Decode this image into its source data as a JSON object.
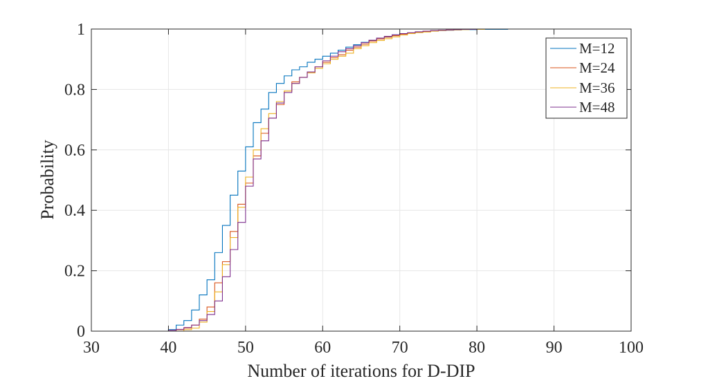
{
  "chart_data": {
    "type": "line",
    "title": "",
    "xlabel": "Number of iterations for D-DIP",
    "ylabel": "Probability",
    "xlim": [
      30,
      100
    ],
    "ylim": [
      0,
      1
    ],
    "xticks": [
      30,
      40,
      50,
      60,
      70,
      80,
      90,
      100
    ],
    "yticks": [
      0,
      0.2,
      0.4,
      0.6,
      0.8,
      1
    ],
    "xtick_labels": [
      "30",
      "40",
      "50",
      "60",
      "70",
      "80",
      "90",
      "100"
    ],
    "ytick_labels": [
      "0",
      "0.2",
      "0.4",
      "0.6",
      "0.8",
      "1"
    ],
    "grid": true,
    "legend_position": "top-right",
    "step": true,
    "x": [
      39,
      40,
      41,
      42,
      43,
      44,
      45,
      46,
      47,
      48,
      49,
      50,
      51,
      52,
      53,
      54,
      55,
      56,
      57,
      58,
      59,
      60,
      61,
      62,
      63,
      64,
      65,
      66,
      67,
      68,
      69,
      70,
      71,
      72,
      73,
      74,
      75,
      76,
      77,
      78,
      79,
      80,
      81,
      82,
      83,
      84,
      85,
      86,
      87,
      88,
      89,
      90,
      91,
      92,
      93
    ],
    "series": [
      {
        "name": "M=12",
        "color": "#0072BD",
        "values": [
          0,
          0.005,
          0.02,
          0.035,
          0.07,
          0.12,
          0.17,
          0.26,
          0.35,
          0.45,
          0.53,
          0.61,
          0.69,
          0.735,
          0.79,
          0.82,
          0.845,
          0.865,
          0.875,
          0.89,
          0.9,
          0.91,
          0.92,
          0.93,
          0.94,
          0.948,
          0.956,
          0.962,
          0.97,
          0.975,
          0.98,
          0.984,
          0.987,
          0.99,
          0.992,
          0.994,
          0.995,
          0.996,
          0.997,
          0.998,
          0.998,
          0.999,
          0.999,
          0.999,
          0.999,
          1,
          1,
          1,
          1,
          1,
          1,
          1,
          1,
          1,
          1
        ]
      },
      {
        "name": "M=24",
        "color": "#D95319",
        "values": [
          0,
          0,
          0.005,
          0.01,
          0.02,
          0.04,
          0.08,
          0.16,
          0.23,
          0.33,
          0.42,
          0.49,
          0.58,
          0.655,
          0.705,
          0.75,
          0.795,
          0.825,
          0.84,
          0.855,
          0.875,
          0.89,
          0.905,
          0.915,
          0.93,
          0.94,
          0.95,
          0.96,
          0.967,
          0.973,
          0.978,
          0.983,
          0.987,
          0.99,
          0.992,
          0.994,
          0.996,
          0.997,
          0.998,
          0.999,
          0.999,
          1,
          1,
          1,
          1,
          1,
          1,
          1,
          1,
          1,
          1,
          1,
          1,
          1,
          1
        ]
      },
      {
        "name": "M=36",
        "color": "#EDB120",
        "values": [
          0,
          0,
          0,
          0.005,
          0.01,
          0.03,
          0.065,
          0.13,
          0.22,
          0.31,
          0.41,
          0.51,
          0.6,
          0.67,
          0.72,
          0.76,
          0.795,
          0.82,
          0.84,
          0.855,
          0.87,
          0.885,
          0.9,
          0.91,
          0.92,
          0.935,
          0.945,
          0.955,
          0.962,
          0.968,
          0.974,
          0.98,
          0.985,
          0.988,
          0.99,
          0.993,
          0.995,
          0.996,
          0.997,
          0.998,
          0.999,
          0.999,
          1,
          1,
          1,
          1,
          1,
          1,
          1,
          1,
          1,
          1,
          1,
          1,
          1
        ]
      },
      {
        "name": "M=48",
        "color": "#7E2F8E",
        "values": [
          0,
          0.003,
          0.006,
          0.012,
          0.02,
          0.035,
          0.055,
          0.1,
          0.18,
          0.27,
          0.36,
          0.48,
          0.57,
          0.63,
          0.705,
          0.755,
          0.79,
          0.82,
          0.84,
          0.858,
          0.875,
          0.895,
          0.91,
          0.925,
          0.935,
          0.945,
          0.955,
          0.963,
          0.97,
          0.976,
          0.981,
          0.985,
          0.988,
          0.991,
          0.993,
          0.995,
          0.996,
          0.997,
          0.998,
          0.999,
          0.999,
          1,
          1,
          1,
          1,
          1,
          1,
          1,
          1,
          1,
          1,
          1,
          1,
          1,
          1
        ]
      }
    ]
  }
}
